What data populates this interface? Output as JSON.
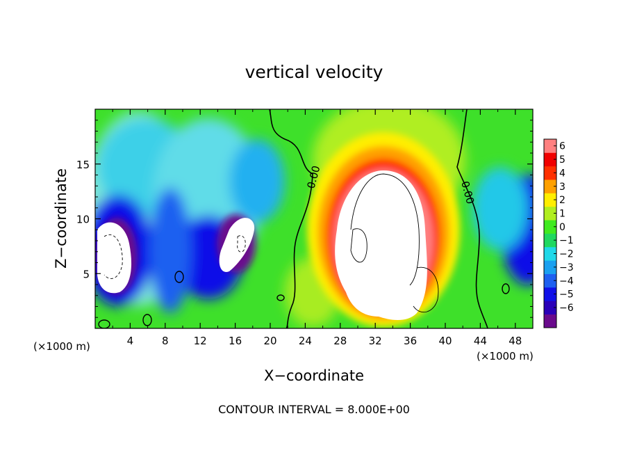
{
  "chart_data": {
    "type": "heatmap",
    "title": "vertical velocity",
    "xlabel": "X−coordinate",
    "ylabel": "Z−coordinate",
    "x_unit_label": "(×1000 m)",
    "xlim": [
      0,
      50
    ],
    "ylim": [
      0,
      20
    ],
    "x_ticks": [
      4,
      8,
      12,
      16,
      20,
      24,
      28,
      32,
      36,
      40,
      44,
      48
    ],
    "y_ticks": [
      5,
      10,
      15
    ],
    "contour_interval_label": "CONTOUR INTERVAL = 8.000E+00",
    "contour_labels": [
      "0.00",
      "0.00"
    ],
    "colorbar": {
      "levels": [
        -6,
        -5,
        -4,
        -3,
        -2,
        -1,
        0,
        1,
        2,
        3,
        4,
        5,
        6
      ],
      "tick_labels": [
        "6",
        "5",
        "4",
        "3",
        "2",
        "1",
        "0",
        "−1",
        "−2",
        "−3",
        "−4",
        "−5",
        "−6"
      ],
      "colors": [
        "#6a0a8c",
        "#2a00b8",
        "#1010e8",
        "#1e60f0",
        "#1aa0f0",
        "#20d8e8",
        "#20d860",
        "#40ea20",
        "#b0ee20",
        "#ffee00",
        "#ffa000",
        "#ff3000",
        "#f00000",
        "#ff8080"
      ]
    },
    "features": [
      {
        "kind": "updraft",
        "x": 33,
        "z": 11,
        "value": "> 6"
      },
      {
        "kind": "downdraft",
        "x": 2,
        "z": 7,
        "value": "< -6"
      },
      {
        "kind": "downdraft",
        "x": 16,
        "z": 8,
        "value": "< -6"
      }
    ]
  }
}
